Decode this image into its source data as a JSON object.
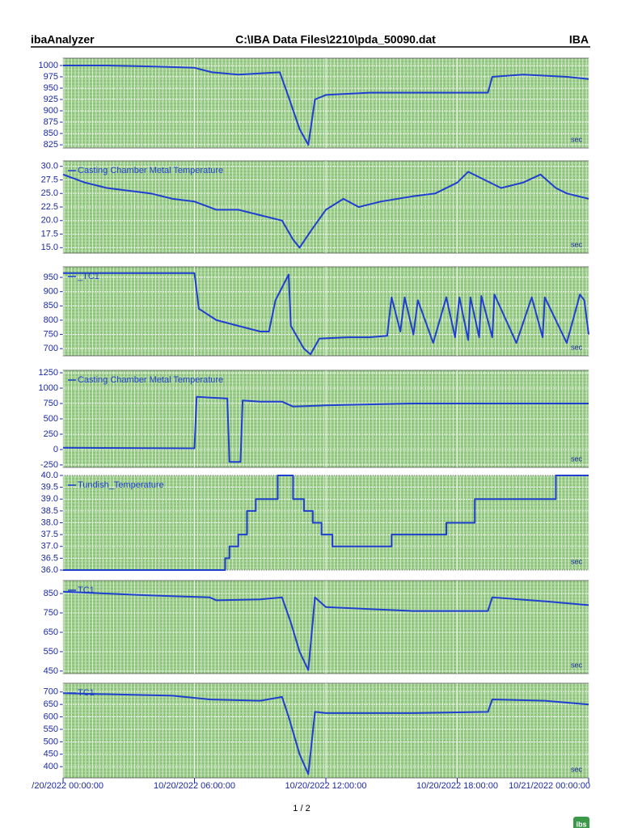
{
  "header": {
    "app": "ibaAnalyzer",
    "file": "C:\\IBA Data Files\\2210\\pda_50090.dat",
    "brand": "IBA"
  },
  "footer": {
    "page": "1 / 2",
    "logo_text": "ibs"
  },
  "x_axis": {
    "xlim": [
      0,
      24
    ],
    "xticks": [
      {
        "value": 0,
        "label": "/20/2022 00:00:00"
      },
      {
        "value": 6,
        "label": "10/20/2022 06:00:00"
      },
      {
        "value": 12,
        "label": "10/20/2022 12:00:00"
      },
      {
        "value": 18,
        "label": "10/20/2022 18:00:00"
      },
      {
        "value": 24,
        "label": "10/21/2022 00:00:00"
      }
    ]
  },
  "chart_data": [
    {
      "type": "line",
      "x_unit": "sec",
      "ylim": [
        818,
        1016
      ],
      "yticks": [
        825,
        850,
        875,
        900,
        925,
        950,
        975,
        1000
      ],
      "x": [
        0,
        2,
        4,
        6,
        6.8,
        8,
        9.9,
        10.3,
        10.8,
        11.2,
        11.5,
        12,
        14,
        16,
        18,
        19.4,
        19.6,
        21,
        23,
        24
      ],
      "series": [
        {
          "color": "#1f3fcf",
          "values": [
            1000,
            1000,
            998,
            995,
            985,
            980,
            985,
            930,
            860,
            825,
            925,
            935,
            940,
            940,
            940,
            940,
            975,
            980,
            975,
            970
          ]
        }
      ]
    },
    {
      "type": "line",
      "x_unit": "sec",
      "ylim": [
        14,
        31
      ],
      "yticks": [
        {
          "value": 15,
          "label": "15.0"
        },
        {
          "value": 17.5,
          "label": "17.5"
        },
        {
          "value": 20,
          "label": "20.0"
        },
        {
          "value": 22.5,
          "label": "22.5"
        },
        {
          "value": 25,
          "label": "25.0"
        },
        {
          "value": 27.5,
          "label": "27.5"
        },
        {
          "value": 30,
          "label": "30.0"
        }
      ],
      "x": [
        0,
        1,
        2,
        3,
        4,
        5,
        6,
        7,
        8,
        9,
        10,
        10.5,
        10.8,
        11.3,
        12,
        12.8,
        13.5,
        14.5,
        16,
        17,
        18,
        18.5,
        19,
        20,
        21,
        21.8,
        22.5,
        23,
        24
      ],
      "series": [
        {
          "name": "Casting Chamber Metal Temperature",
          "color": "#1f3fcf",
          "values": [
            28.5,
            27,
            26,
            25.5,
            25,
            24,
            23.5,
            22,
            22,
            21,
            20,
            16.5,
            15,
            18,
            22,
            24,
            22.5,
            23.5,
            24.5,
            25,
            27,
            29,
            28,
            26,
            27,
            28.5,
            26,
            25,
            24
          ]
        }
      ]
    },
    {
      "type": "line",
      "x_unit": "sec",
      "ylim": [
        675,
        987
      ],
      "yticks": [
        700,
        750,
        800,
        850,
        900,
        950
      ],
      "x": [
        0,
        6,
        6.2,
        7,
        8,
        9,
        9.4,
        9.7,
        10.3,
        10.4,
        11,
        11.3,
        11.7,
        12.5,
        13,
        14,
        14.8,
        15.0,
        15.4,
        15.6,
        16.0,
        16.2,
        16.9,
        17.5,
        17.9,
        18.1,
        18.5,
        18.6,
        19.0,
        19.1,
        19.6,
        19.7,
        20.7,
        21.4,
        21.9,
        22.0,
        23.0,
        23.6,
        23.8,
        24.0
      ],
      "series": [
        {
          "name": "_TC1",
          "color": "#1f3fcf",
          "values": [
            965,
            965,
            840,
            800,
            780,
            760,
            760,
            870,
            960,
            780,
            700,
            680,
            735,
            738,
            740,
            740,
            745,
            880,
            760,
            880,
            750,
            870,
            720,
            880,
            740,
            880,
            730,
            880,
            740,
            885,
            740,
            890,
            720,
            880,
            740,
            880,
            720,
            890,
            870,
            750
          ]
        }
      ]
    },
    {
      "type": "line",
      "x_unit": "sec",
      "ylim": [
        -290,
        1290
      ],
      "yticks": [
        -250,
        0,
        250,
        500,
        750,
        1000,
        1250
      ],
      "x": [
        0,
        6,
        6.1,
        7.5,
        7.6,
        8.1,
        8.2,
        9,
        10,
        10.5,
        12,
        16,
        24
      ],
      "series": [
        {
          "name": "Casting Chamber Metal Temperature",
          "color": "#1f3fcf",
          "values": [
            30,
            20,
            860,
            830,
            -200,
            -200,
            800,
            780,
            780,
            700,
            720,
            750,
            750
          ]
        }
      ]
    },
    {
      "type": "line",
      "x_unit": "sec",
      "ylim": [
        36,
        40
      ],
      "yticks": [
        {
          "value": 36,
          "label": "36.0"
        },
        36.5,
        {
          "value": 37,
          "label": "37.0"
        },
        37.5,
        {
          "value": 38,
          "label": "38.0"
        },
        38.5,
        {
          "value": 39,
          "label": "39.0"
        },
        39.5,
        {
          "value": 40,
          "label": "40.0"
        }
      ],
      "x": [
        0,
        7.4,
        7.4,
        7.6,
        7.6,
        8.0,
        8.0,
        8.4,
        8.4,
        8.8,
        8.8,
        9.8,
        9.8,
        10.5,
        10.5,
        11.0,
        11.0,
        11.4,
        11.4,
        11.8,
        11.8,
        12.3,
        12.3,
        15.0,
        15.0,
        17.5,
        17.5,
        18.8,
        18.8,
        22.5,
        22.5,
        24
      ],
      "series": [
        {
          "name": "Tundish_Temperature",
          "color": "#1f3fcf",
          "values": [
            36,
            36,
            36.5,
            36.5,
            37,
            37,
            37.5,
            37.5,
            38.5,
            38.5,
            39,
            39,
            40,
            40,
            39,
            39,
            38.5,
            38.5,
            38,
            38,
            37.5,
            37.5,
            37,
            37,
            37.5,
            37.5,
            38,
            38,
            39,
            39,
            40,
            40
          ]
        }
      ]
    },
    {
      "type": "line",
      "x_unit": "sec",
      "ylim": [
        437,
        917
      ],
      "yticks": [
        450,
        550,
        650,
        750,
        850
      ],
      "x": [
        0,
        4,
        6.7,
        7,
        9,
        10,
        10.4,
        10.8,
        11.2,
        11.5,
        12,
        14,
        16,
        19.4,
        19.6,
        22,
        24
      ],
      "series": [
        {
          "name": "TC1",
          "color": "#1f3fcf",
          "values": [
            860,
            840,
            830,
            815,
            820,
            830,
            700,
            550,
            455,
            830,
            780,
            770,
            760,
            760,
            830,
            810,
            790
          ]
        }
      ]
    },
    {
      "type": "line",
      "x_unit": "sec",
      "ylim": [
        355,
        735
      ],
      "yticks": [
        400,
        450,
        500,
        550,
        600,
        650,
        700
      ],
      "x": [
        0,
        5,
        6.7,
        9,
        10,
        10.3,
        10.8,
        11.2,
        11.5,
        12,
        16,
        19.4,
        19.6,
        22,
        24
      ],
      "series": [
        {
          "name": "TC1",
          "color": "#1f3fcf",
          "values": [
            695,
            685,
            670,
            665,
            680,
            600,
            450,
            370,
            620,
            615,
            615,
            620,
            670,
            665,
            650
          ]
        }
      ]
    }
  ]
}
